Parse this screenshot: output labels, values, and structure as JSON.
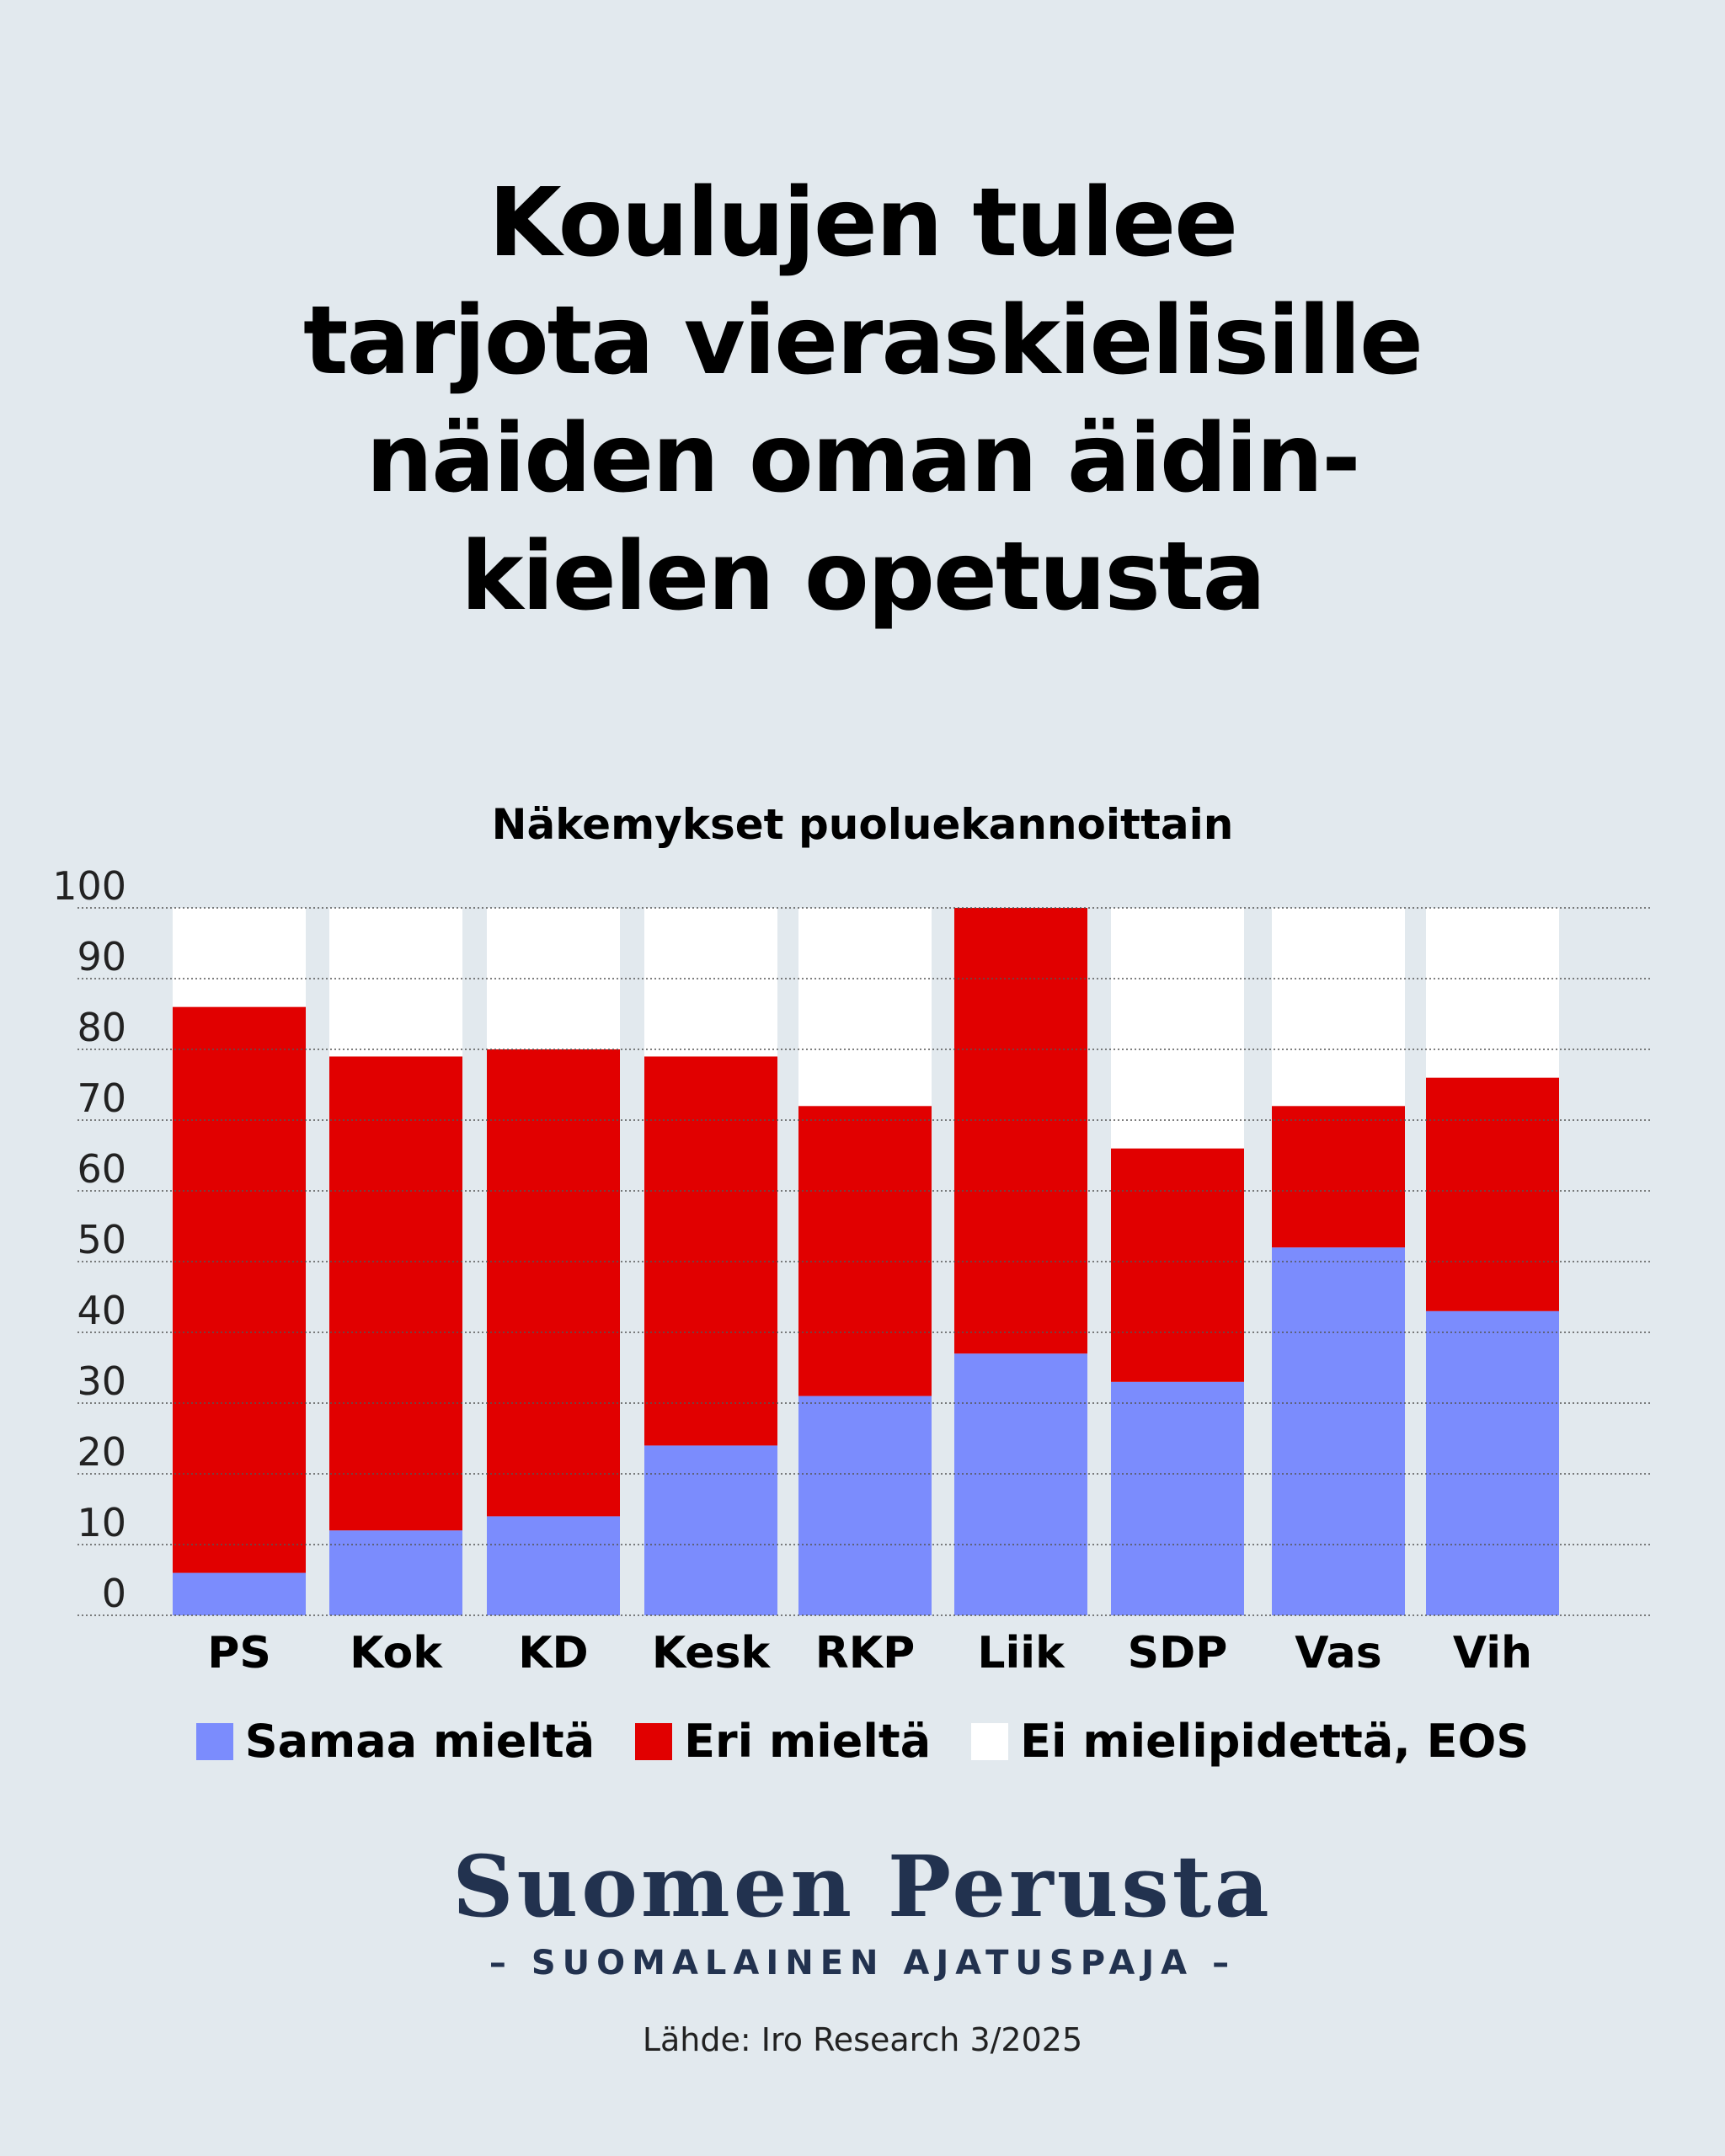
{
  "title_lines": [
    "Koulujen tulee",
    "tarjota vieraskielisille",
    "näiden oman äidin-",
    "kielen opetusta"
  ],
  "chart_data": {
    "type": "bar",
    "stacked": true,
    "title": "Näkemykset puoluekannoittain",
    "categories": [
      "PS",
      "Kok",
      "KD",
      "Kesk",
      "RKP",
      "Liik",
      "SDP",
      "Vas",
      "Vih"
    ],
    "series": [
      {
        "name": "Samaa mieltä",
        "color": "#7b8cfd",
        "values": [
          6,
          12,
          14,
          24,
          31,
          37,
          33,
          52,
          43
        ]
      },
      {
        "name": "Eri mieltä",
        "color": "#e10000",
        "values": [
          80,
          67,
          66,
          55,
          41,
          63,
          33,
          20,
          33
        ]
      },
      {
        "name": "Ei mielipidettä, EOS",
        "color": "#ffffff",
        "values": [
          14,
          21,
          20,
          21,
          28,
          0,
          34,
          28,
          24
        ]
      }
    ],
    "ylim": [
      0,
      100
    ],
    "yticks": [
      0,
      10,
      20,
      30,
      40,
      50,
      60,
      70,
      80,
      90,
      100
    ],
    "grid": true,
    "legend_position": "bottom"
  },
  "brand": {
    "name": "Suomen Perusta",
    "tagline": "– SUOMALAINEN AJATUSPAJA –"
  },
  "source": "Lähde: Iro Research 3/2025"
}
